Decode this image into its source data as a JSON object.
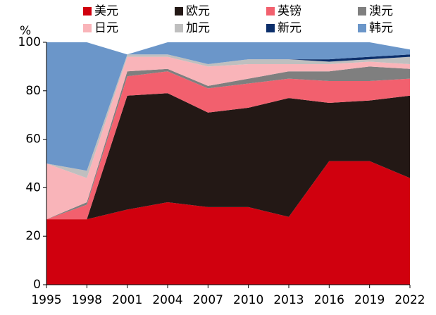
{
  "chart_data": {
    "type": "stacked_area",
    "y_label": "%",
    "x": [
      1995,
      1998,
      2001,
      2004,
      2007,
      2010,
      2013,
      2016,
      2019,
      2022
    ],
    "series": [
      {
        "name": "美元",
        "color": "#d0000e",
        "values": [
          27,
          27,
          31,
          34,
          32,
          32,
          28,
          51,
          51,
          44
        ]
      },
      {
        "name": "欧元",
        "color": "#231815",
        "values": [
          0,
          0,
          47,
          45,
          39,
          41,
          49,
          24,
          25,
          34
        ]
      },
      {
        "name": "英镑",
        "color": "#f2606e",
        "values": [
          0,
          6,
          8,
          9,
          10,
          10,
          8,
          9,
          8,
          7
        ]
      },
      {
        "name": "澳元",
        "color": "#7f7f7f",
        "values": [
          0,
          1,
          2,
          1,
          1,
          2,
          3,
          4,
          6,
          4
        ]
      },
      {
        "name": "日元",
        "color": "#f9b4b9",
        "values": [
          23,
          10,
          6,
          5,
          8,
          6,
          3,
          3,
          2,
          2
        ]
      },
      {
        "name": "加元",
        "color": "#bfbfbf",
        "values": [
          0,
          3,
          1,
          1,
          1,
          2,
          2,
          1,
          1,
          3
        ]
      },
      {
        "name": "新元",
        "color": "#0c2f6b",
        "values": [
          0,
          0,
          0,
          0,
          0,
          0,
          0,
          1,
          1,
          1
        ]
      },
      {
        "name": "韩元",
        "color": "#6b96c9",
        "values": [
          50,
          53,
          0,
          5,
          9,
          7,
          7,
          7,
          6,
          2
        ]
      }
    ],
    "xlim": [
      1995,
      2022
    ],
    "xticks": [
      1995,
      1998,
      2001,
      2004,
      2007,
      2010,
      2013,
      2016,
      2019,
      2022
    ],
    "ylim": [
      0,
      100
    ],
    "yticks": [
      0,
      20,
      40,
      60,
      80,
      100
    ]
  }
}
